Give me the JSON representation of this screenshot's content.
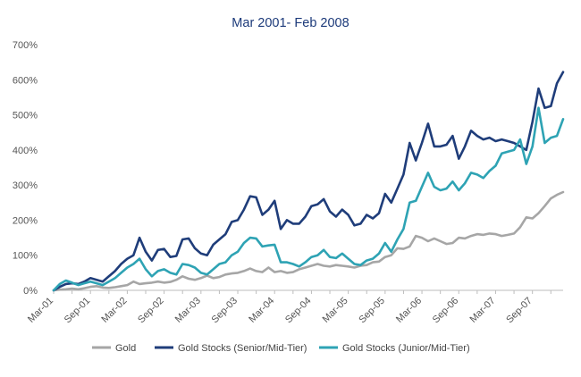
{
  "chart_data": {
    "type": "line",
    "title": "Mar 2001- Feb 2008",
    "xlabel": "",
    "ylabel": "",
    "ylim": [
      0,
      700
    ],
    "yticks": [
      "0%",
      "100%",
      "200%",
      "300%",
      "400%",
      "500%",
      "600%",
      "700%"
    ],
    "x_tick_labels": [
      "Mar-01",
      "Sep-01",
      "Mar-02",
      "Sep-02",
      "Mar-03",
      "Sep-03",
      "Mar-04",
      "Sep-04",
      "Mar-05",
      "Sep-05",
      "Mar-06",
      "Sep-06",
      "Mar-07",
      "Sep-07"
    ],
    "months": 84,
    "legend_position": "bottom",
    "series": [
      {
        "name": "Gold",
        "color": "#a6a6a6",
        "values": [
          0,
          2,
          3,
          5,
          3,
          6,
          10,
          12,
          8,
          7,
          9,
          12,
          15,
          25,
          18,
          20,
          22,
          25,
          22,
          24,
          30,
          40,
          33,
          30,
          35,
          42,
          35,
          38,
          45,
          48,
          50,
          55,
          62,
          55,
          52,
          65,
          52,
          55,
          50,
          52,
          60,
          65,
          70,
          75,
          70,
          68,
          72,
          70,
          68,
          65,
          70,
          72,
          80,
          82,
          95,
          100,
          120,
          118,
          125,
          155,
          150,
          140,
          148,
          140,
          132,
          135,
          150,
          148,
          155,
          160,
          158,
          162,
          160,
          155,
          158,
          162,
          180,
          208,
          205,
          220,
          240,
          262,
          272,
          280
        ]
      },
      {
        "name": "Gold Stocks (Senior/Mid-Tier)",
        "color": "#1f3d7a",
        "values": [
          0,
          10,
          18,
          20,
          18,
          25,
          35,
          30,
          25,
          40,
          55,
          75,
          90,
          100,
          150,
          110,
          85,
          115,
          118,
          95,
          98,
          145,
          148,
          120,
          105,
          100,
          130,
          145,
          160,
          195,
          200,
          230,
          268,
          265,
          215,
          230,
          255,
          175,
          200,
          190,
          190,
          210,
          240,
          245,
          260,
          225,
          210,
          230,
          215,
          185,
          190,
          215,
          205,
          220,
          275,
          250,
          290,
          330,
          420,
          370,
          420,
          475,
          410,
          410,
          415,
          440,
          375,
          410,
          455,
          440,
          430,
          435,
          425,
          430,
          425,
          420,
          410,
          400,
          480,
          575,
          520,
          525,
          590,
          622
        ]
      },
      {
        "name": "Gold Stocks (Junior/Mid-Tier)",
        "color": "#2ea3b4",
        "values": [
          0,
          18,
          28,
          22,
          15,
          20,
          25,
          20,
          15,
          25,
          35,
          50,
          65,
          75,
          90,
          60,
          40,
          55,
          60,
          50,
          45,
          75,
          72,
          65,
          50,
          45,
          60,
          75,
          80,
          100,
          110,
          135,
          150,
          148,
          125,
          128,
          130,
          80,
          80,
          75,
          68,
          80,
          95,
          100,
          115,
          95,
          92,
          105,
          90,
          75,
          72,
          85,
          90,
          105,
          135,
          110,
          145,
          175,
          250,
          255,
          295,
          335,
          295,
          285,
          290,
          310,
          285,
          305,
          335,
          330,
          320,
          340,
          355,
          390,
          395,
          400,
          430,
          360,
          410,
          520,
          420,
          435,
          440,
          488
        ]
      }
    ]
  }
}
